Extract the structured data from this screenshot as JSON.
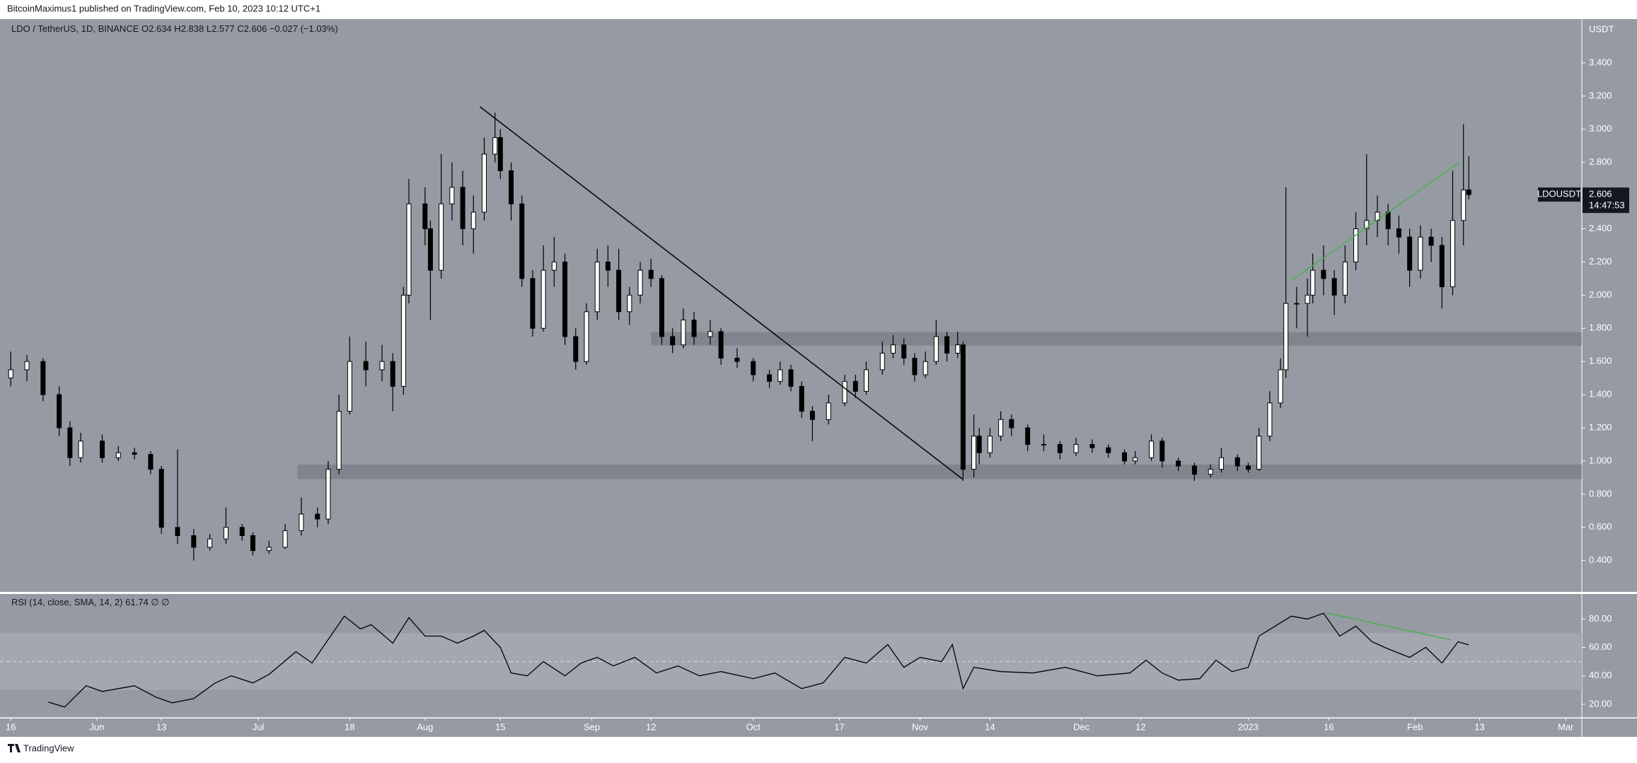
{
  "chart_data": {
    "type": "candlestick",
    "publisher": "BitcoinMaximus1 published on TradingView.com, Feb 10, 2023 10:12 UTC+1",
    "title": "LDO / TetherUS, 1D, BINANCE",
    "ohlc_labels": [
      "O",
      "H",
      "L",
      "C"
    ],
    "change": "−0.027 (−1.03%)",
    "currency": "USDT",
    "symbol": "LDOUSDT",
    "countdown": "14:47:53",
    "footer": "TradingView",
    "up_color": "#ffffff",
    "down_color": "#000000",
    "background": "#959aa3",
    "xlim": [
      -2,
      292
    ],
    "xticks": [
      {
        "value": 0,
        "label": "16"
      },
      {
        "value": 16,
        "label": "Jun"
      },
      {
        "value": 28,
        "label": "13"
      },
      {
        "value": 46,
        "label": "Jul"
      },
      {
        "value": 63,
        "label": "18"
      },
      {
        "value": 77,
        "label": "Aug"
      },
      {
        "value": 91,
        "label": "15"
      },
      {
        "value": 108,
        "label": "Sep"
      },
      {
        "value": 119,
        "label": "12"
      },
      {
        "value": 138,
        "label": "Oct"
      },
      {
        "value": 154,
        "label": "17"
      },
      {
        "value": 169,
        "label": "Nov"
      },
      {
        "value": 182,
        "label": "14"
      },
      {
        "value": 199,
        "label": "Dec"
      },
      {
        "value": 210,
        "label": "12"
      },
      {
        "value": 230,
        "label": "2023"
      },
      {
        "value": 245,
        "label": "16"
      },
      {
        "value": 261,
        "label": "Feb"
      },
      {
        "value": 273,
        "label": "13"
      },
      {
        "value": 289,
        "label": "Mar"
      }
    ],
    "ylim": [
      0.211,
      3.664
    ],
    "yticks": [
      {
        "value": 0.4,
        "label": "0.400"
      },
      {
        "value": 0.6,
        "label": "0.600"
      },
      {
        "value": 0.8,
        "label": "0.800"
      },
      {
        "value": 1.0,
        "label": "1.000"
      },
      {
        "value": 1.2,
        "label": "1.200"
      },
      {
        "value": 1.4,
        "label": "1.400"
      },
      {
        "value": 1.6,
        "label": "1.600"
      },
      {
        "value": 1.8,
        "label": "1.800"
      },
      {
        "value": 2.0,
        "label": "2.000"
      },
      {
        "value": 2.2,
        "label": "2.200"
      },
      {
        "value": 2.4,
        "label": "2.400"
      },
      {
        "value": 2.6,
        "label": "2.600"
      },
      {
        "value": 2.8,
        "label": "2.800"
      },
      {
        "value": 3.0,
        "label": "3.000"
      },
      {
        "value": 3.2,
        "label": "3.200"
      },
      {
        "value": 3.4,
        "label": "3.400"
      }
    ],
    "x": [
      0,
      3,
      6,
      9,
      11,
      13,
      17,
      20,
      23,
      26,
      28,
      31,
      34,
      37,
      40,
      43,
      45,
      48,
      51,
      54,
      57,
      59,
      61,
      63,
      66,
      69,
      71,
      73,
      74,
      77,
      78,
      80,
      82,
      84,
      86,
      88,
      90,
      91,
      93,
      95,
      97,
      99,
      101,
      103,
      105,
      107,
      109,
      111,
      113,
      115,
      117,
      119,
      121,
      123,
      125,
      127,
      130,
      132,
      135,
      138,
      141,
      143,
      145,
      147,
      149,
      152,
      155,
      157,
      159,
      162,
      164,
      166,
      168,
      170,
      172,
      174,
      176,
      177,
      179,
      180,
      182,
      184,
      186,
      189,
      192,
      195,
      198,
      201,
      204,
      207,
      209,
      212,
      214,
      217,
      220,
      223,
      225,
      228,
      230,
      232,
      234,
      236,
      237,
      239,
      241,
      242,
      244,
      246,
      248,
      250,
      252,
      254,
      256,
      258,
      260,
      262,
      264,
      266,
      268,
      270,
      271
    ],
    "ohlc": [
      [
        1.5,
        1.66,
        1.45,
        1.55
      ],
      [
        1.55,
        1.64,
        1.48,
        1.6
      ],
      [
        1.6,
        1.62,
        1.36,
        1.4
      ],
      [
        1.4,
        1.45,
        1.15,
        1.2
      ],
      [
        1.2,
        1.24,
        0.97,
        1.02
      ],
      [
        1.02,
        1.17,
        0.99,
        1.12
      ],
      [
        1.12,
        1.16,
        0.99,
        1.02
      ],
      [
        1.02,
        1.09,
        1.0,
        1.05
      ],
      [
        1.05,
        1.08,
        1.01,
        1.04
      ],
      [
        1.04,
        1.06,
        0.92,
        0.95
      ],
      [
        0.95,
        0.97,
        0.56,
        0.6
      ],
      [
        0.6,
        1.07,
        0.5,
        0.55
      ],
      [
        0.55,
        0.59,
        0.4,
        0.48
      ],
      [
        0.48,
        0.56,
        0.46,
        0.53
      ],
      [
        0.53,
        0.72,
        0.5,
        0.6
      ],
      [
        0.6,
        0.62,
        0.52,
        0.55
      ],
      [
        0.55,
        0.57,
        0.43,
        0.46
      ],
      [
        0.46,
        0.52,
        0.44,
        0.48
      ],
      [
        0.48,
        0.62,
        0.47,
        0.58
      ],
      [
        0.58,
        0.78,
        0.55,
        0.68
      ],
      [
        0.68,
        0.72,
        0.6,
        0.65
      ],
      [
        0.65,
        1.0,
        0.62,
        0.95
      ],
      [
        0.95,
        1.4,
        0.92,
        1.3
      ],
      [
        1.3,
        1.75,
        1.28,
        1.6
      ],
      [
        1.6,
        1.72,
        1.45,
        1.55
      ],
      [
        1.55,
        1.7,
        1.48,
        1.6
      ],
      [
        1.6,
        1.65,
        1.3,
        1.45
      ],
      [
        1.45,
        2.05,
        1.4,
        2.0
      ],
      [
        2.0,
        2.7,
        1.95,
        2.55
      ],
      [
        2.55,
        2.65,
        2.3,
        2.4
      ],
      [
        2.4,
        2.45,
        1.85,
        2.15
      ],
      [
        2.15,
        2.85,
        2.1,
        2.55
      ],
      [
        2.55,
        2.8,
        2.45,
        2.65
      ],
      [
        2.65,
        2.75,
        2.3,
        2.4
      ],
      [
        2.4,
        2.6,
        2.25,
        2.5
      ],
      [
        2.5,
        2.95,
        2.45,
        2.85
      ],
      [
        2.85,
        3.1,
        2.8,
        2.95
      ],
      [
        2.95,
        3.0,
        2.7,
        2.75
      ],
      [
        2.75,
        2.8,
        2.45,
        2.55
      ],
      [
        2.55,
        2.6,
        2.05,
        2.1
      ],
      [
        2.1,
        2.15,
        1.75,
        1.8
      ],
      [
        1.8,
        2.3,
        1.78,
        2.15
      ],
      [
        2.15,
        2.35,
        2.05,
        2.2
      ],
      [
        2.2,
        2.25,
        1.7,
        1.75
      ],
      [
        1.75,
        1.8,
        1.55,
        1.6
      ],
      [
        1.6,
        1.95,
        1.58,
        1.9
      ],
      [
        1.9,
        2.28,
        1.85,
        2.2
      ],
      [
        2.2,
        2.3,
        2.05,
        2.15
      ],
      [
        2.15,
        2.28,
        1.85,
        1.9
      ],
      [
        1.9,
        2.05,
        1.82,
        2.0
      ],
      [
        2.0,
        2.2,
        1.95,
        2.15
      ],
      [
        2.15,
        2.22,
        2.05,
        2.1
      ],
      [
        2.1,
        2.12,
        1.7,
        1.75
      ],
      [
        1.75,
        1.8,
        1.65,
        1.7
      ],
      [
        1.7,
        1.92,
        1.68,
        1.85
      ],
      [
        1.85,
        1.9,
        1.7,
        1.75
      ],
      [
        1.75,
        1.85,
        1.7,
        1.78
      ],
      [
        1.78,
        1.8,
        1.58,
        1.62
      ],
      [
        1.62,
        1.68,
        1.56,
        1.6
      ],
      [
        1.6,
        1.62,
        1.48,
        1.52
      ],
      [
        1.52,
        1.55,
        1.44,
        1.48
      ],
      [
        1.48,
        1.6,
        1.46,
        1.55
      ],
      [
        1.55,
        1.58,
        1.42,
        1.45
      ],
      [
        1.45,
        1.48,
        1.26,
        1.3
      ],
      [
        1.3,
        1.33,
        1.12,
        1.25
      ],
      [
        1.25,
        1.4,
        1.22,
        1.35
      ],
      [
        1.35,
        1.52,
        1.33,
        1.48
      ],
      [
        1.48,
        1.52,
        1.38,
        1.42
      ],
      [
        1.42,
        1.6,
        1.4,
        1.55
      ],
      [
        1.55,
        1.72,
        1.52,
        1.65
      ],
      [
        1.65,
        1.76,
        1.62,
        1.7
      ],
      [
        1.7,
        1.74,
        1.58,
        1.62
      ],
      [
        1.62,
        1.65,
        1.48,
        1.52
      ],
      [
        1.52,
        1.66,
        1.5,
        1.6
      ],
      [
        1.6,
        1.85,
        1.58,
        1.75
      ],
      [
        1.75,
        1.78,
        1.6,
        1.65
      ],
      [
        1.65,
        1.78,
        1.62,
        1.7
      ],
      [
        1.7,
        1.72,
        0.88,
        0.95
      ],
      [
        0.95,
        1.28,
        0.9,
        1.15
      ],
      [
        1.15,
        1.2,
        0.98,
        1.05
      ],
      [
        1.05,
        1.2,
        1.02,
        1.15
      ],
      [
        1.15,
        1.3,
        1.12,
        1.25
      ],
      [
        1.25,
        1.28,
        1.15,
        1.2
      ],
      [
        1.2,
        1.22,
        1.06,
        1.1
      ],
      [
        1.1,
        1.16,
        1.06,
        1.1
      ],
      [
        1.1,
        1.12,
        1.01,
        1.05
      ],
      [
        1.05,
        1.14,
        1.03,
        1.1
      ],
      [
        1.1,
        1.13,
        1.05,
        1.08
      ],
      [
        1.08,
        1.1,
        1.02,
        1.05
      ],
      [
        1.05,
        1.07,
        0.98,
        1.0
      ],
      [
        1.0,
        1.06,
        0.98,
        1.02
      ],
      [
        1.02,
        1.16,
        1.0,
        1.12
      ],
      [
        1.12,
        1.14,
        0.96,
        1.0
      ],
      [
        1.0,
        1.02,
        0.94,
        0.97
      ],
      [
        0.97,
        0.99,
        0.88,
        0.92
      ],
      [
        0.92,
        0.98,
        0.9,
        0.95
      ],
      [
        0.95,
        1.08,
        0.93,
        1.02
      ],
      [
        1.02,
        1.04,
        0.94,
        0.97
      ],
      [
        0.97,
        0.99,
        0.93,
        0.95
      ],
      [
        0.95,
        1.2,
        0.94,
        1.15
      ],
      [
        1.15,
        1.42,
        1.12,
        1.35
      ],
      [
        1.35,
        1.62,
        1.32,
        1.55
      ],
      [
        1.55,
        2.65,
        1.5,
        1.95
      ],
      [
        1.95,
        2.05,
        1.8,
        1.95
      ],
      [
        1.95,
        2.1,
        1.75,
        2.0
      ],
      [
        2.0,
        2.25,
        1.95,
        2.15
      ],
      [
        2.15,
        2.3,
        2.0,
        2.1
      ],
      [
        2.1,
        2.15,
        1.88,
        2.0
      ],
      [
        2.0,
        2.3,
        1.95,
        2.2
      ],
      [
        2.2,
        2.5,
        2.15,
        2.4
      ],
      [
        2.4,
        2.85,
        2.3,
        2.45
      ],
      [
        2.45,
        2.6,
        2.35,
        2.5
      ],
      [
        2.5,
        2.55,
        2.3,
        2.4
      ],
      [
        2.4,
        2.48,
        2.25,
        2.35
      ],
      [
        2.35,
        2.4,
        2.05,
        2.15
      ],
      [
        2.15,
        2.42,
        2.1,
        2.35
      ],
      [
        2.35,
        2.4,
        2.2,
        2.3
      ],
      [
        2.3,
        2.35,
        1.92,
        2.05
      ],
      [
        2.05,
        2.75,
        2.0,
        2.45
      ],
      [
        2.45,
        3.03,
        2.3,
        2.634
      ],
      [
        2.634,
        2.838,
        2.577,
        2.606
      ]
    ],
    "zones": [
      {
        "x": 119,
        "top": 1.777,
        "bottom": 1.696,
        "color": "#70737b"
      },
      {
        "x": 53.3,
        "top": 0.979,
        "bottom": 0.891,
        "color": "#70737b"
      }
    ],
    "trendlines": [
      {
        "x": [
          87.2,
          176.9
        ],
        "y": [
          3.136,
          0.891
        ],
        "color": "#000000"
      },
      {
        "x": [
          238.2,
          269.2
        ],
        "y": [
          2.092,
          2.8
        ],
        "color": "#4caf50"
      }
    ],
    "rsi": {
      "title": "RSI (14, close, SMA, 14, 2)",
      "empty": "∅ ∅",
      "color": "#000000",
      "band": [
        30,
        70
      ],
      "mid": 50,
      "ylim": [
        10.5,
        97.6
      ],
      "yticks": [
        {
          "value": 20,
          "label": "20.00"
        },
        {
          "value": 40,
          "label": "40.00"
        },
        {
          "value": 60,
          "label": "60.00"
        },
        {
          "value": 80,
          "label": "80.00"
        }
      ],
      "x": [
        7,
        10,
        14,
        17,
        23,
        27,
        30,
        34,
        38,
        41,
        45,
        48,
        53,
        56,
        58,
        62,
        65,
        67,
        71,
        74,
        77,
        80,
        83,
        86,
        88,
        91,
        93,
        96,
        99,
        103,
        106,
        109,
        112,
        116,
        120,
        124,
        128,
        132,
        138,
        142,
        147,
        151,
        155,
        159,
        163,
        166,
        169,
        173,
        175,
        177,
        179,
        184,
        190,
        196,
        202,
        208,
        211,
        214,
        217,
        221,
        224,
        227,
        230,
        232,
        235,
        238,
        241,
        244,
        247,
        250,
        253,
        256,
        260,
        263,
        266,
        269,
        271
      ],
      "values": [
        21.5,
        18,
        33,
        29,
        33,
        25,
        21,
        24,
        35,
        40,
        35,
        41,
        57,
        49,
        60,
        82,
        73,
        76,
        63,
        81,
        68,
        68,
        63,
        68,
        72,
        60,
        42,
        40,
        50,
        40,
        49,
        53,
        47,
        53,
        42,
        47,
        40,
        43,
        38,
        42,
        31,
        35,
        53,
        49,
        62,
        46,
        53,
        50,
        62,
        31,
        46,
        43,
        42,
        46,
        40,
        42,
        51,
        42,
        37,
        38,
        51,
        43,
        46,
        68,
        75,
        82,
        80,
        84,
        68,
        75,
        64,
        59,
        53,
        60,
        49,
        64,
        61.74
      ],
      "trendline": {
        "x": [
          244.4,
          267.6
        ],
        "y": [
          84.4,
          65.4
        ],
        "color": "#4caf50"
      }
    }
  }
}
